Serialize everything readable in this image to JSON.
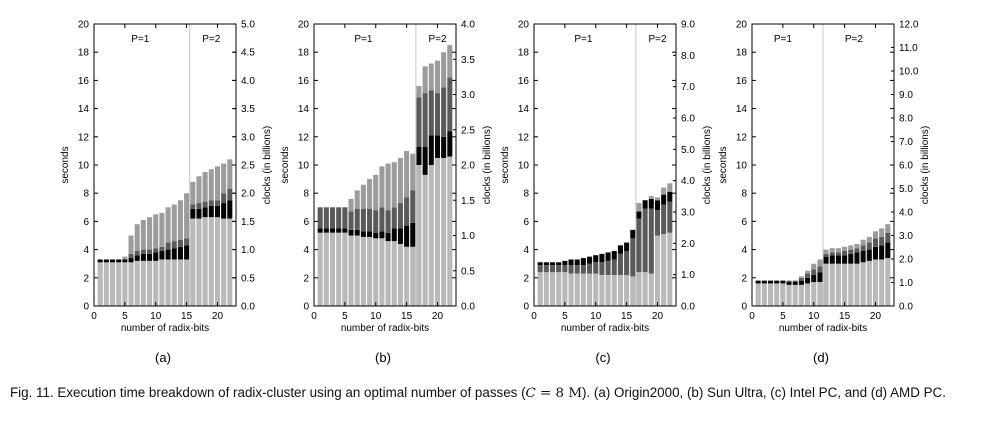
{
  "caption": {
    "lead": "Fig. 11. Execution time breakdown of radix-cluster using an optimal number of passes (",
    "math_var": "C",
    "math_eq": " = 8 ",
    "math_unit": "M",
    "tail": "). (a) Origin2000, (b) Sun Ultra, (c) Intel PC, and (d) AMD PC."
  },
  "colors": {
    "light": "#b9b9b9",
    "black": "#050505",
    "dark": "#5a5a5a",
    "mid": "#9c9c9c",
    "divider": "#c8c8c8"
  },
  "chart_data": [
    {
      "type": "bar",
      "stacked": true,
      "panel_label": "(a)",
      "xlabel": "number of radix-bits",
      "ylabel": "seconds",
      "y2label": "clocks (in billions)",
      "xlim": [
        0,
        23
      ],
      "ylim": [
        0,
        20
      ],
      "y2lim": [
        0,
        5.0
      ],
      "xticks": [
        0,
        5,
        10,
        15,
        20
      ],
      "yticks": [
        0,
        2,
        4,
        6,
        8,
        10,
        12,
        14,
        16,
        18,
        20
      ],
      "y2ticks": [
        "0.0",
        "0.5",
        "1.0",
        "1.5",
        "2.0",
        "2.5",
        "3.0",
        "3.5",
        "4.0",
        "4.5",
        "5.0"
      ],
      "regions": [
        {
          "label": "P=1",
          "at": 7.5
        },
        {
          "label": "P=2",
          "at": 19
        }
      ],
      "divider_x": 15.5,
      "x": [
        1,
        2,
        3,
        4,
        5,
        6,
        7,
        8,
        9,
        10,
        11,
        12,
        13,
        14,
        15,
        16,
        17,
        18,
        19,
        20,
        21,
        22
      ],
      "series": [
        {
          "color_key": "light",
          "values": [
            3.1,
            3.1,
            3.1,
            3.1,
            3.1,
            3.1,
            3.2,
            3.2,
            3.2,
            3.2,
            3.3,
            3.3,
            3.3,
            3.3,
            3.3,
            6.2,
            6.2,
            6.3,
            6.3,
            6.3,
            6.2,
            6.2
          ]
        },
        {
          "color_key": "black",
          "values": [
            0.2,
            0.2,
            0.2,
            0.2,
            0.2,
            0.3,
            0.4,
            0.5,
            0.5,
            0.6,
            0.6,
            0.7,
            0.8,
            0.9,
            1.0,
            0.7,
            0.7,
            0.7,
            0.8,
            0.8,
            1.1,
            1.3
          ]
        },
        {
          "color_key": "dark",
          "values": [
            0,
            0,
            0,
            0,
            0,
            0.3,
            0.3,
            0.3,
            0.3,
            0.3,
            0.3,
            0.5,
            0.5,
            0.5,
            0.5,
            0.3,
            0.4,
            0.4,
            0.4,
            0.4,
            0.7,
            0.8
          ]
        },
        {
          "color_key": "mid",
          "values": [
            0,
            0,
            0,
            0,
            0.2,
            1.3,
            1.9,
            2.1,
            2.3,
            2.4,
            2.4,
            2.5,
            2.6,
            2.8,
            3.2,
            1.6,
            1.9,
            2.1,
            2.2,
            2.4,
            2.1,
            2.1
          ]
        }
      ]
    },
    {
      "type": "bar",
      "stacked": true,
      "panel_label": "(b)",
      "xlabel": "number of radix-bits",
      "ylabel": "seconds",
      "y2label": "clocks (in billions)",
      "xlim": [
        0,
        23
      ],
      "ylim": [
        0,
        20
      ],
      "y2lim": [
        0,
        4.0
      ],
      "xticks": [
        0,
        5,
        10,
        15,
        20
      ],
      "yticks": [
        0,
        2,
        4,
        6,
        8,
        10,
        12,
        14,
        16,
        18,
        20
      ],
      "y2ticks": [
        "0.0",
        "0.5",
        "1.0",
        "1.5",
        "2.0",
        "2.5",
        "3.0",
        "3.5",
        "4.0"
      ],
      "regions": [
        {
          "label": "P=1",
          "at": 8
        },
        {
          "label": "P=2",
          "at": 20
        }
      ],
      "divider_x": 16.5,
      "x": [
        1,
        2,
        3,
        4,
        5,
        6,
        7,
        8,
        9,
        10,
        11,
        12,
        13,
        14,
        15,
        16,
        17,
        18,
        19,
        20,
        21,
        22
      ],
      "series": [
        {
          "color_key": "light",
          "values": [
            5.2,
            5.2,
            5.2,
            5.2,
            5.2,
            5.0,
            5.0,
            4.9,
            4.9,
            4.8,
            4.8,
            4.6,
            4.6,
            4.4,
            4.2,
            4.2,
            10.0,
            9.3,
            10.0,
            10.5,
            10.5,
            10.6
          ]
        },
        {
          "color_key": "black",
          "values": [
            0.3,
            0.3,
            0.3,
            0.3,
            0.3,
            0.4,
            0.4,
            0.4,
            0.4,
            0.4,
            0.5,
            0.6,
            0.9,
            1.1,
            1.5,
            1.7,
            1.3,
            2.0,
            2.1,
            1.6,
            1.5,
            1.8
          ]
        },
        {
          "color_key": "dark",
          "values": [
            1.5,
            1.5,
            1.5,
            1.5,
            1.5,
            1.3,
            1.5,
            1.6,
            1.6,
            1.6,
            1.7,
            1.6,
            1.5,
            1.8,
            2.0,
            2.3,
            3.5,
            3.8,
            3.2,
            3.0,
            3.5,
            3.8
          ]
        },
        {
          "color_key": "mid",
          "values": [
            0,
            0,
            0,
            0,
            0,
            0.9,
            1.3,
            1.7,
            2.1,
            2.5,
            2.9,
            3.3,
            3.2,
            3.2,
            3.3,
            2.6,
            0.8,
            1.9,
            1.9,
            2.3,
            2.5,
            2.3
          ]
        }
      ]
    },
    {
      "type": "bar",
      "stacked": true,
      "panel_label": "(c)",
      "xlabel": "number of radix-bits",
      "ylabel": "seconds",
      "y2label": "clocks (in billions)",
      "xlim": [
        0,
        23
      ],
      "ylim": [
        0,
        20
      ],
      "y2lim": [
        0,
        9.0
      ],
      "xticks": [
        0,
        5,
        10,
        15,
        20
      ],
      "yticks": [
        0,
        2,
        4,
        6,
        8,
        10,
        12,
        14,
        16,
        18,
        20
      ],
      "y2ticks": [
        "0.0",
        "1.0",
        "2.0",
        "3.0",
        "4.0",
        "5.0",
        "6.0",
        "7.0",
        "8.0",
        "9.0"
      ],
      "regions": [
        {
          "label": "P=1",
          "at": 8
        },
        {
          "label": "P=2",
          "at": 20
        }
      ],
      "divider_x": 16.5,
      "x": [
        1,
        2,
        3,
        4,
        5,
        6,
        7,
        8,
        9,
        10,
        11,
        12,
        13,
        14,
        15,
        16,
        17,
        18,
        19,
        20,
        21,
        22
      ],
      "series": [
        {
          "color_key": "light",
          "values": [
            2.4,
            2.4,
            2.4,
            2.4,
            2.4,
            2.3,
            2.3,
            2.3,
            2.3,
            2.3,
            2.2,
            2.2,
            2.2,
            2.2,
            2.2,
            2.1,
            2.4,
            2.4,
            2.3,
            5.0,
            5.1,
            5.2
          ]
        },
        {
          "color_key": "dark",
          "values": [
            0.5,
            0.5,
            0.5,
            0.5,
            0.5,
            0.6,
            0.6,
            0.6,
            0.7,
            0.8,
            0.9,
            1.0,
            1.1,
            1.5,
            1.7,
            2.7,
            3.8,
            4.5,
            4.6,
            1.8,
            2.1,
            2.2
          ]
        },
        {
          "color_key": "black",
          "values": [
            0.2,
            0.2,
            0.2,
            0.2,
            0.3,
            0.4,
            0.4,
            0.5,
            0.5,
            0.5,
            0.6,
            0.6,
            0.6,
            0.6,
            0.6,
            0.6,
            0.5,
            0.6,
            0.7,
            0.7,
            0.7,
            0.7
          ]
        },
        {
          "color_key": "mid",
          "values": [
            0,
            0,
            0,
            0,
            0,
            0,
            0,
            0,
            0,
            0,
            0,
            0,
            0,
            0,
            0,
            0,
            0.6,
            0,
            0.2,
            0.2,
            0.5,
            0.6
          ]
        }
      ]
    },
    {
      "type": "bar",
      "stacked": true,
      "panel_label": "(d)",
      "xlabel": "number of radix-bits",
      "ylabel": "seconds",
      "y2label": "clocks (in billions)",
      "xlim": [
        0,
        23
      ],
      "ylim": [
        0,
        20
      ],
      "y2lim": [
        0,
        12.0
      ],
      "xticks": [
        0,
        5,
        10,
        15,
        20
      ],
      "yticks": [
        0,
        2,
        4,
        6,
        8,
        10,
        12,
        14,
        16,
        18,
        20
      ],
      "y2ticks": [
        "0.0",
        "1.0",
        "2.0",
        "3.0",
        "4.0",
        "5.0",
        "6.0",
        "7.0",
        "8.0",
        "9.0",
        "10.0",
        "11.0",
        "12.0"
      ],
      "regions": [
        {
          "label": "P=1",
          "at": 5
        },
        {
          "label": "P=2",
          "at": 16.5
        }
      ],
      "divider_x": 11.5,
      "x": [
        1,
        2,
        3,
        4,
        5,
        6,
        7,
        8,
        9,
        10,
        11,
        12,
        13,
        14,
        15,
        16,
        17,
        18,
        19,
        20,
        21,
        22
      ],
      "series": [
        {
          "color_key": "light",
          "values": [
            1.6,
            1.6,
            1.6,
            1.6,
            1.6,
            1.5,
            1.5,
            1.5,
            1.6,
            1.7,
            1.7,
            3.0,
            3.0,
            3.0,
            3.0,
            3.0,
            3.0,
            3.1,
            3.2,
            3.3,
            3.3,
            3.4
          ]
        },
        {
          "color_key": "black",
          "values": [
            0.2,
            0.2,
            0.2,
            0.2,
            0.2,
            0.2,
            0.2,
            0.3,
            0.4,
            0.5,
            0.7,
            0.5,
            0.6,
            0.6,
            0.6,
            0.7,
            0.8,
            0.8,
            0.8,
            0.9,
            1.0,
            1.1
          ]
        },
        {
          "color_key": "dark",
          "values": [
            0,
            0,
            0,
            0,
            0,
            0.1,
            0.1,
            0.2,
            0.3,
            0.4,
            0.4,
            0.2,
            0.2,
            0.2,
            0.3,
            0.3,
            0.3,
            0.4,
            0.5,
            0.6,
            0.6,
            0.7
          ]
        },
        {
          "color_key": "mid",
          "values": [
            0,
            0,
            0,
            0,
            0,
            0,
            0,
            0.1,
            0.2,
            0.4,
            0.5,
            0.3,
            0.3,
            0.3,
            0.3,
            0.3,
            0.3,
            0.4,
            0.4,
            0.5,
            0.6,
            0.6
          ]
        }
      ]
    }
  ]
}
